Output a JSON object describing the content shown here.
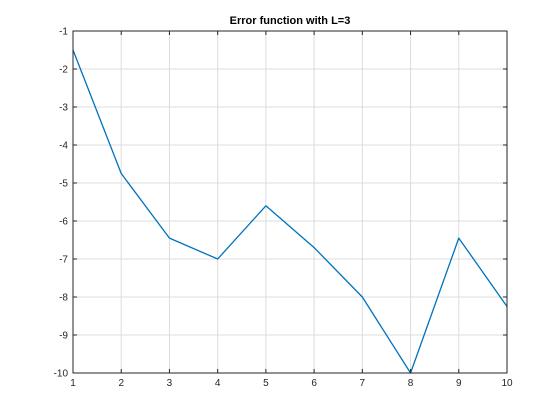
{
  "chart_data": {
    "type": "line",
    "title": "Error function with L=3",
    "xlabel": "",
    "ylabel": "",
    "x": [
      1,
      2,
      3,
      4,
      5,
      6,
      7,
      8,
      9,
      10
    ],
    "series": [
      {
        "values": [
          -1.5,
          -4.75,
          -6.45,
          -7.0,
          -5.6,
          -6.7,
          -8.0,
          -10.0,
          -6.45,
          -8.25
        ],
        "color": "#0072bd"
      }
    ],
    "xlim": [
      1,
      10
    ],
    "ylim": [
      -10,
      -1
    ],
    "xticks": [
      "1",
      "2",
      "3",
      "4",
      "5",
      "6",
      "7",
      "8",
      "9",
      "10"
    ],
    "yticks": [
      "-1",
      "-2",
      "-3",
      "-4",
      "-5",
      "-6",
      "-7",
      "-8",
      "-9",
      "-10"
    ],
    "grid": true,
    "legend": false
  }
}
